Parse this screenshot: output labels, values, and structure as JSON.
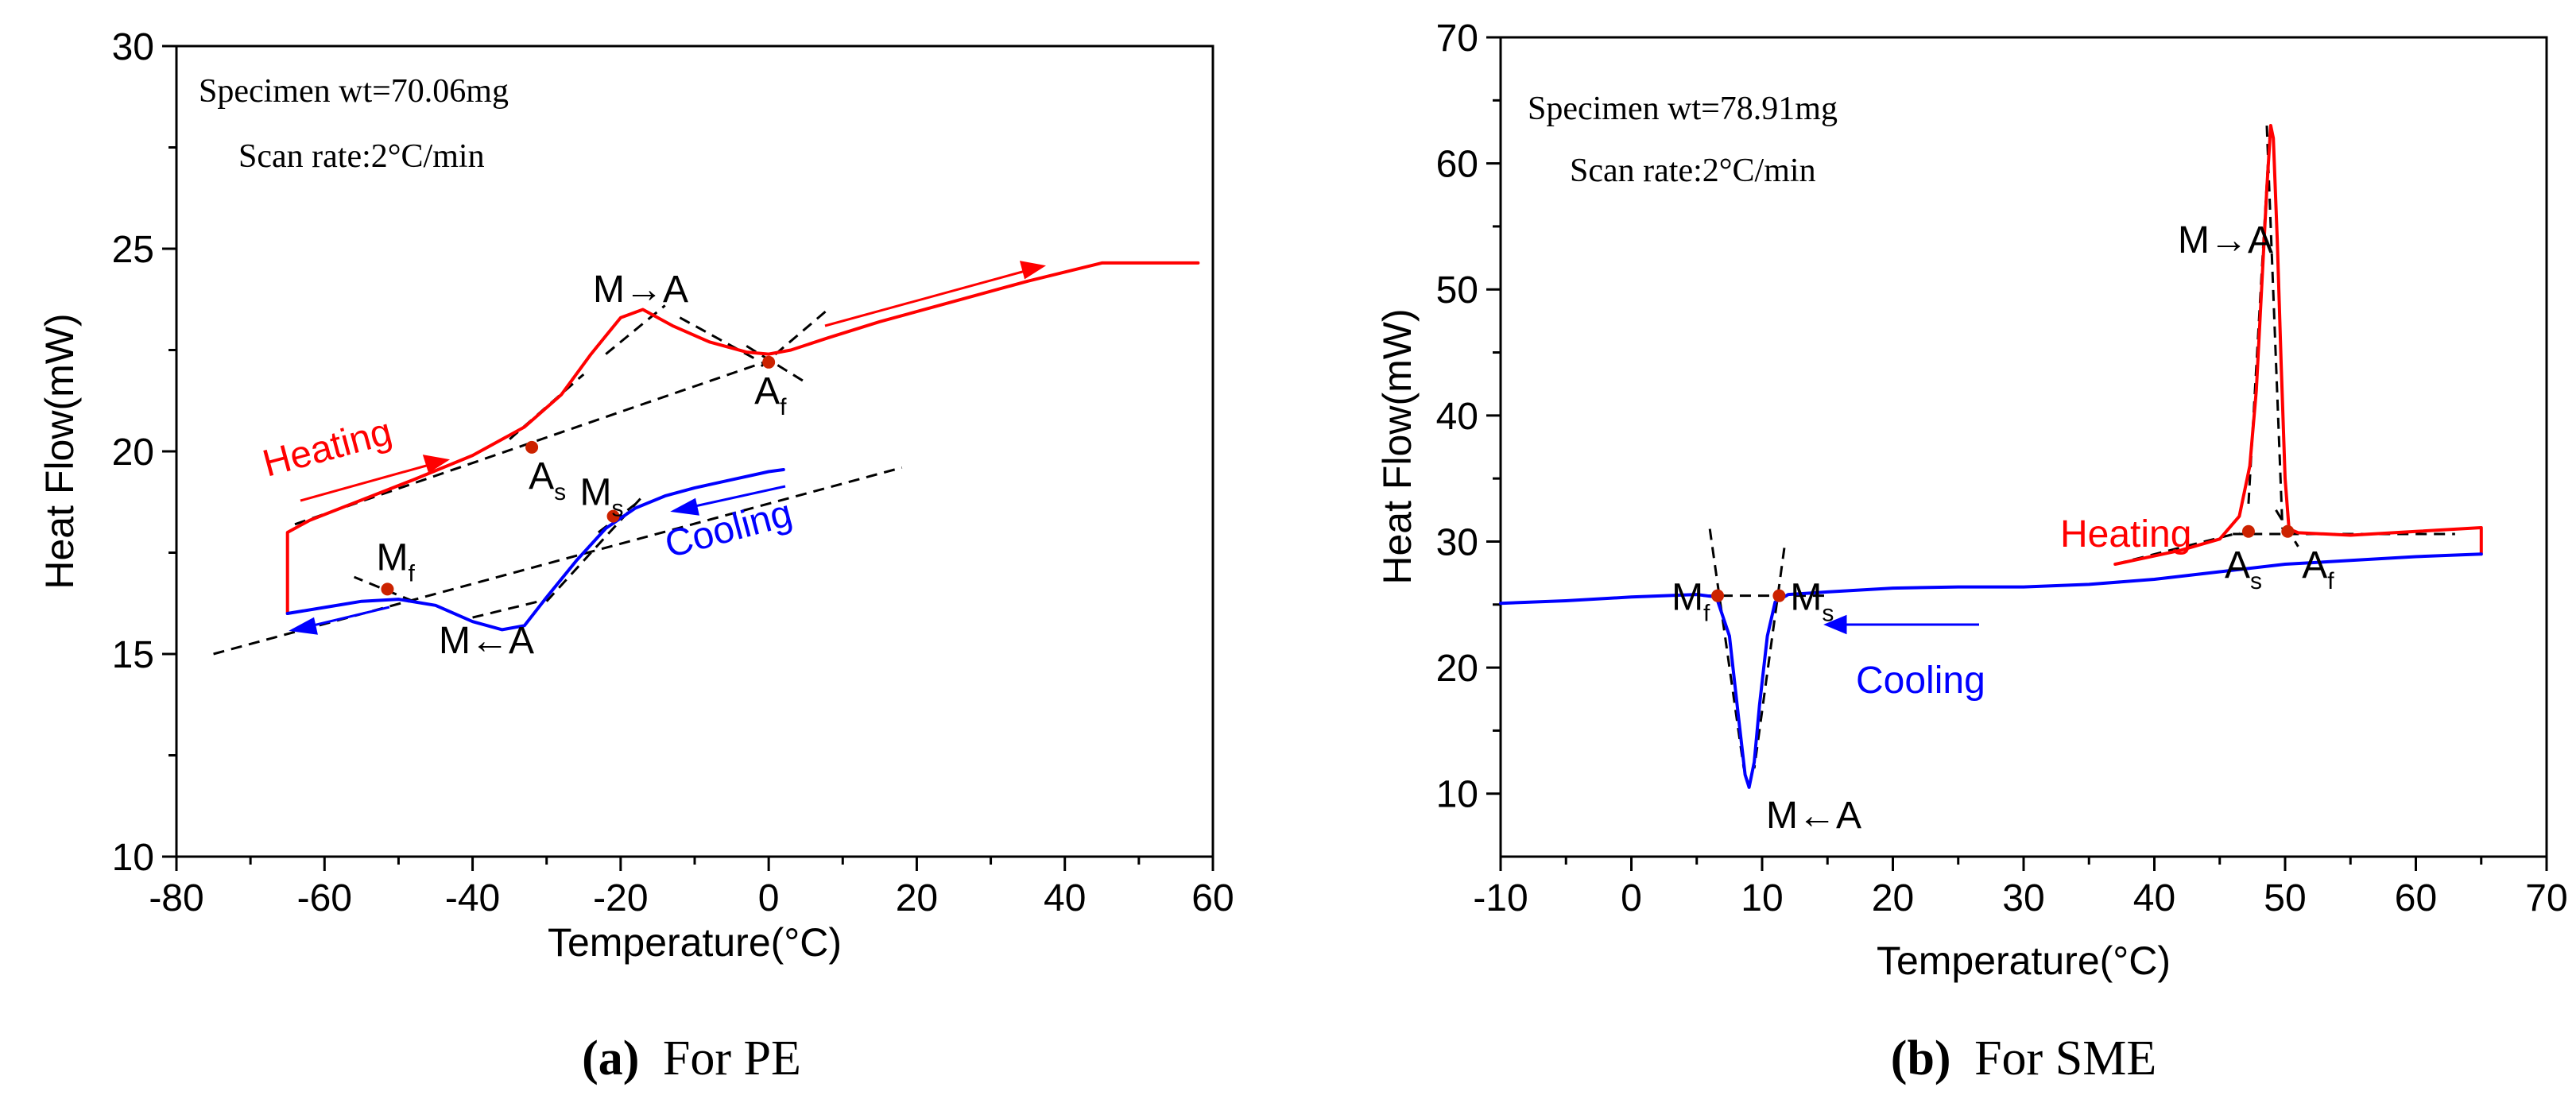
{
  "chart_data": [
    {
      "type": "line",
      "panel_label": "(a)",
      "caption": "For PE",
      "xlabel": "Temperature(°C)",
      "ylabel": "Heat Flow(mW)",
      "xlim": [
        -80,
        60
      ],
      "ylim": [
        10,
        30
      ],
      "xticks": [
        -80,
        -60,
        -40,
        -20,
        0,
        20,
        40,
        60
      ],
      "yticks": [
        10,
        15,
        20,
        25,
        30
      ],
      "info": [
        "Specimen wt=70.06mg",
        "Scan rate:2°C/min"
      ],
      "series": [
        {
          "name": "Heating",
          "color": "#ff0000",
          "x": [
            -65,
            -65,
            -62,
            -55,
            -48,
            -40,
            -33,
            -28,
            -24,
            -20,
            -17,
            -13,
            -8,
            -3,
            0,
            3,
            8,
            15,
            25,
            35,
            45,
            50,
            58
          ],
          "y": [
            16.0,
            18.0,
            18.3,
            18.8,
            19.3,
            19.9,
            20.6,
            21.4,
            22.4,
            23.3,
            23.5,
            23.1,
            22.7,
            22.45,
            22.4,
            22.5,
            22.8,
            23.2,
            23.7,
            24.2,
            24.65,
            24.65,
            24.65
          ]
        },
        {
          "name": "Cooling",
          "color": "#0000ff",
          "x": [
            -65,
            -60,
            -55,
            -50,
            -45,
            -40,
            -36,
            -33,
            -30,
            -26,
            -22,
            -18,
            -14,
            -10,
            -5,
            0,
            2
          ],
          "y": [
            16.0,
            16.15,
            16.3,
            16.35,
            16.2,
            15.8,
            15.6,
            15.7,
            16.4,
            17.3,
            18.1,
            18.6,
            18.9,
            19.1,
            19.3,
            19.5,
            19.55
          ]
        }
      ],
      "dashed_guides": [
        {
          "x": [
            -64,
            1
          ],
          "y": [
            18.2,
            22.3
          ]
        },
        {
          "x": [
            -75,
            18
          ],
          "y": [
            15.0,
            19.6
          ]
        },
        {
          "x": [
            -35,
            -25
          ],
          "y": [
            20.3,
            21.9
          ]
        },
        {
          "x": [
            -22,
            -14
          ],
          "y": [
            22.4,
            23.6
          ]
        },
        {
          "x": [
            -12,
            -2
          ],
          "y": [
            23.3,
            22.3
          ]
        },
        {
          "x": [
            -3,
            5
          ],
          "y": [
            22.6,
            21.7
          ]
        },
        {
          "x": [
            -1,
            8
          ],
          "y": [
            22.1,
            23.5
          ]
        },
        {
          "x": [
            -48,
            -56
          ],
          "y": [
            16.3,
            16.9
          ]
        },
        {
          "x": [
            -40,
            -31
          ],
          "y": [
            15.9,
            16.3
          ]
        },
        {
          "x": [
            -30,
            -17
          ],
          "y": [
            16.3,
            18.9
          ]
        },
        {
          "x": [
            -23,
            -18
          ],
          "y": [
            18.0,
            18.7
          ]
        }
      ],
      "markers": [
        {
          "label": "A",
          "subscript": "s",
          "x": -32,
          "y": 20.1
        },
        {
          "label": "A",
          "subscript": "f",
          "x": 0,
          "y": 22.2
        },
        {
          "label": "M",
          "subscript": "s",
          "x": -21,
          "y": 18.4
        },
        {
          "label": "M",
          "subscript": "f",
          "x": -51.5,
          "y": 16.6
        }
      ],
      "annotations": [
        "M→A",
        "M←A",
        "Heating",
        "Cooling"
      ]
    },
    {
      "type": "line",
      "panel_label": "(b)",
      "caption": "For SME",
      "xlabel": "Temperature(°C)",
      "ylabel": "Heat Flow(mW)",
      "xlim": [
        -10,
        70
      ],
      "ylim": [
        5,
        70
      ],
      "xticks": [
        -10,
        0,
        10,
        20,
        30,
        40,
        50,
        60,
        70
      ],
      "yticks": [
        10,
        20,
        30,
        40,
        50,
        60,
        70
      ],
      "info": [
        "Specimen wt=78.91mg",
        "Scan rate:2°C/min"
      ],
      "series": [
        {
          "name": "Heating",
          "color": "#ff0000",
          "x": [
            37,
            42,
            45,
            46.5,
            47.3,
            47.8,
            48.2,
            48.6,
            48.9,
            49.1,
            49.4,
            49.7,
            50.0,
            50.3,
            51,
            55,
            60,
            65,
            65
          ],
          "y": [
            28.2,
            29.3,
            30.2,
            32.0,
            36.0,
            42.0,
            50.0,
            58.0,
            63.0,
            62.0,
            54.0,
            44.0,
            35.0,
            31.0,
            30.7,
            30.5,
            30.8,
            31.1,
            29.0
          ]
        },
        {
          "name": "Cooling",
          "color": "#0000ff",
          "x": [
            -10,
            -5,
            0,
            5,
            6.5,
            7.5,
            8.2,
            8.7,
            9.0,
            9.4,
            9.8,
            10.4,
            11.0,
            12,
            15,
            20,
            25,
            30,
            35,
            40,
            45,
            50,
            55,
            60,
            65
          ],
          "y": [
            25.1,
            25.3,
            25.6,
            25.8,
            25.6,
            22.5,
            16.0,
            11.5,
            10.5,
            12.5,
            17.0,
            22.5,
            25.2,
            25.8,
            26.0,
            26.3,
            26.4,
            26.4,
            26.6,
            27.0,
            27.6,
            28.2,
            28.5,
            28.8,
            29.0
          ]
        }
      ],
      "dashed_guides": [
        {
          "x": [
            5.5,
            15
          ],
          "y": [
            25.7,
            25.7
          ]
        },
        {
          "x": [
            6.0,
            8.6
          ],
          "y": [
            31.0,
            12.0
          ]
        },
        {
          "x": [
            11.7,
            9.4
          ],
          "y": [
            29.5,
            12.0
          ]
        },
        {
          "x": [
            37,
            46.5
          ],
          "y": [
            28.2,
            30.7
          ]
        },
        {
          "x": [
            47.2,
            48.8
          ],
          "y": [
            33.0,
            62.0
          ]
        },
        {
          "x": [
            48.6,
            49.8
          ],
          "y": [
            63.0,
            31.0
          ]
        },
        {
          "x": [
            46,
            63
          ],
          "y": [
            30.6,
            30.6
          ]
        },
        {
          "x": [
            49.3,
            51
          ],
          "y": [
            32.5,
            29.6
          ]
        }
      ],
      "markers": [
        {
          "label": "M",
          "subscript": "f",
          "x": 6.6,
          "y": 25.7
        },
        {
          "label": "M",
          "subscript": "s",
          "x": 11.3,
          "y": 25.7
        },
        {
          "label": "A",
          "subscript": "s",
          "x": 47.2,
          "y": 30.8
        },
        {
          "label": "A",
          "subscript": "f",
          "x": 50.2,
          "y": 30.8
        }
      ],
      "annotations": [
        "M→A",
        "M←A",
        "Heating",
        "Cooling"
      ]
    }
  ],
  "colors": {
    "heating": "#ff0000",
    "cooling": "#0000ff",
    "marker": "#cc2200"
  }
}
